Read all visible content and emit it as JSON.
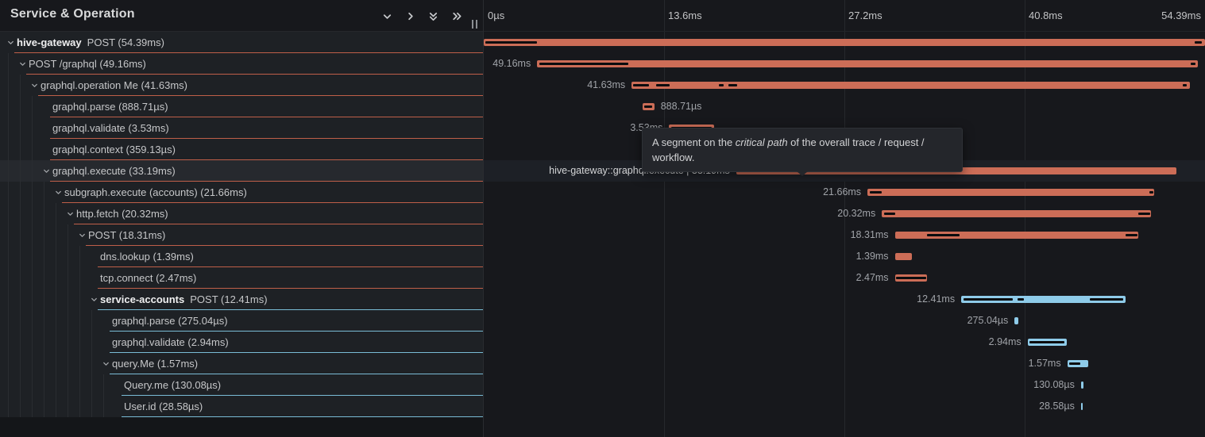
{
  "app": {
    "title": "Service & Operation"
  },
  "header_icons": [
    {
      "name": "chevron-down-icon",
      "glyph": "chevron-down"
    },
    {
      "name": "chevron-right-icon",
      "glyph": "chevron-right"
    },
    {
      "name": "double-chevron-down-icon",
      "glyph": "double-chevron-down"
    },
    {
      "name": "double-chevron-right-icon",
      "glyph": "double-chevron-right"
    }
  ],
  "timeline": {
    "ticks": [
      {
        "label": "0µs",
        "pos": 0
      },
      {
        "label": "13.6ms",
        "pos": 25
      },
      {
        "label": "27.2ms",
        "pos": 50
      },
      {
        "label": "40.8ms",
        "pos": 75
      },
      {
        "label": "54.39ms",
        "pos": 100
      }
    ],
    "gridlines": [
      25,
      50,
      75
    ]
  },
  "colors": {
    "orange": "#cc6d57",
    "blue": "#8ecbe9",
    "orange_underline": "#bf5f49",
    "blue_underline": "#7abcd6",
    "crit": "#0b0c0e"
  },
  "tooltip": {
    "pre": "A segment on the ",
    "em": "critical path",
    "post": " of the overall trace / request / workflow."
  },
  "rows": [
    {
      "id": "hive-gateway-post",
      "depth": 0,
      "expandable": true,
      "service": "hive-gateway",
      "label": "POST (54.39ms)",
      "color": "orange",
      "bar": {
        "left": 0,
        "width": 100,
        "label": "",
        "side": "none",
        "crit": [
          [
            0.2,
            7.2
          ],
          [
            98.6,
            1.0
          ]
        ]
      }
    },
    {
      "id": "post-graphql",
      "depth": 1,
      "expandable": true,
      "label": "POST /graphql (49.16ms)",
      "color": "orange",
      "bar": {
        "left": 7.4,
        "width": 91.6,
        "label": "49.16ms",
        "side": "left",
        "crit": [
          [
            7.7,
            12.3
          ],
          [
            98.0,
            0.7
          ]
        ]
      }
    },
    {
      "id": "graphql-operation-me",
      "depth": 2,
      "expandable": true,
      "label": "graphql.operation Me (41.63ms)",
      "color": "orange",
      "bar": {
        "left": 20.5,
        "width": 77.4,
        "label": "41.63ms",
        "side": "left",
        "crit": [
          [
            20.7,
            2.2
          ],
          [
            23.9,
            1.9
          ],
          [
            32.6,
            0.7
          ],
          [
            33.9,
            1.2
          ],
          [
            96.9,
            0.6
          ]
        ]
      }
    },
    {
      "id": "gw-graphql-parse",
      "depth": 3,
      "expandable": false,
      "label": "graphql.parse (888.71µs)",
      "color": "orange",
      "bar": {
        "left": 22.0,
        "width": 1.65,
        "label": "888.71µs",
        "side": "right",
        "crit": [
          [
            22.2,
            1.2
          ]
        ]
      }
    },
    {
      "id": "gw-graphql-validate",
      "depth": 3,
      "expandable": false,
      "label": "graphql.validate (3.53ms)",
      "color": "orange",
      "bar": {
        "left": 25.7,
        "width": 6.2,
        "label": "3.53ms",
        "side": "left",
        "crit": [
          [
            26.0,
            5.6
          ]
        ]
      }
    },
    {
      "id": "gw-graphql-context",
      "depth": 3,
      "expandable": false,
      "label": "graphql.context (359.13µs)",
      "color": "orange",
      "bar": {
        "left": 32.3,
        "width": 0.66,
        "label": "359.13µs",
        "side": "left",
        "crit": []
      }
    },
    {
      "id": "gw-graphql-execute",
      "depth": 3,
      "expandable": true,
      "hover": true,
      "label": "graphql.execute (33.19ms)",
      "color": "orange",
      "bar": {
        "left": 35.0,
        "width": 61.0,
        "label": "hive-gateway::graphql.execute | 33.19ms",
        "side": "left",
        "crit": [
          [
            35.3,
            17.8
          ]
        ]
      }
    },
    {
      "id": "subgraph-execute-accounts",
      "depth": 4,
      "expandable": true,
      "label": "subgraph.execute (accounts) (21.66ms)",
      "color": "orange",
      "bar": {
        "left": 53.2,
        "width": 39.7,
        "label": "21.66ms",
        "side": "left",
        "crit": [
          [
            53.5,
            1.7
          ],
          [
            92.3,
            0.5
          ]
        ]
      }
    },
    {
      "id": "http-fetch",
      "depth": 5,
      "expandable": true,
      "label": "http.fetch (20.32ms)",
      "color": "orange",
      "bar": {
        "left": 55.2,
        "width": 37.3,
        "label": "20.32ms",
        "side": "left",
        "crit": [
          [
            55.5,
            1.6
          ],
          [
            90.7,
            1.7
          ]
        ]
      }
    },
    {
      "id": "post",
      "depth": 6,
      "expandable": true,
      "label": "POST (18.31ms)",
      "color": "orange",
      "bar": {
        "left": 57.0,
        "width": 33.7,
        "label": "18.31ms",
        "side": "left",
        "crit": [
          [
            61.5,
            4.5
          ],
          [
            89.0,
            1.6
          ]
        ]
      }
    },
    {
      "id": "dns-lookup",
      "depth": 7,
      "expandable": false,
      "label": "dns.lookup (1.39ms)",
      "color": "orange",
      "bar": {
        "left": 57.0,
        "width": 2.4,
        "label": "1.39ms",
        "side": "left",
        "crit": []
      }
    },
    {
      "id": "tcp-connect",
      "depth": 7,
      "expandable": false,
      "label": "tcp.connect (2.47ms)",
      "color": "orange",
      "bar": {
        "left": 57.0,
        "width": 4.5,
        "label": "2.47ms",
        "side": "left",
        "crit": [
          [
            57.2,
            4.1
          ]
        ]
      }
    },
    {
      "id": "service-accounts-post",
      "depth": 7,
      "expandable": true,
      "service": "service-accounts",
      "label": "POST (12.41ms)",
      "color": "blue",
      "bar": {
        "left": 66.2,
        "width": 22.8,
        "label": "12.41ms",
        "side": "left",
        "crit": [
          [
            66.5,
            6.9
          ],
          [
            74.0,
            0.9
          ],
          [
            84.0,
            4.7
          ]
        ]
      }
    },
    {
      "id": "sa-graphql-parse",
      "depth": 8,
      "expandable": false,
      "label": "graphql.parse (275.04µs)",
      "color": "blue",
      "bar": {
        "left": 73.6,
        "width": 0.5,
        "label": "275.04µs",
        "side": "left",
        "crit": []
      }
    },
    {
      "id": "sa-graphql-validate",
      "depth": 8,
      "expandable": false,
      "label": "graphql.validate (2.94ms)",
      "color": "blue",
      "bar": {
        "left": 75.4,
        "width": 5.4,
        "label": "2.94ms",
        "side": "left",
        "crit": [
          [
            75.7,
            4.8
          ]
        ]
      }
    },
    {
      "id": "query-me",
      "depth": 8,
      "expandable": true,
      "label": "query.Me (1.57ms)",
      "color": "blue",
      "bar": {
        "left": 80.9,
        "width": 2.9,
        "label": "1.57ms",
        "side": "left",
        "crit": [
          [
            81.2,
            1.5
          ]
        ]
      }
    },
    {
      "id": "query-me-resolver",
      "depth": 9,
      "expandable": false,
      "label": "Query.me (130.08µs)",
      "color": "blue",
      "bar": {
        "left": 82.8,
        "width": 0.3,
        "label": "130.08µs",
        "side": "left",
        "crit": []
      }
    },
    {
      "id": "user-id",
      "depth": 9,
      "expandable": false,
      "label": "User.id (28.58µs)",
      "color": "blue",
      "bar": {
        "left": 82.8,
        "width": 0.22,
        "label": "28.58µs",
        "side": "left",
        "crit": []
      }
    }
  ]
}
